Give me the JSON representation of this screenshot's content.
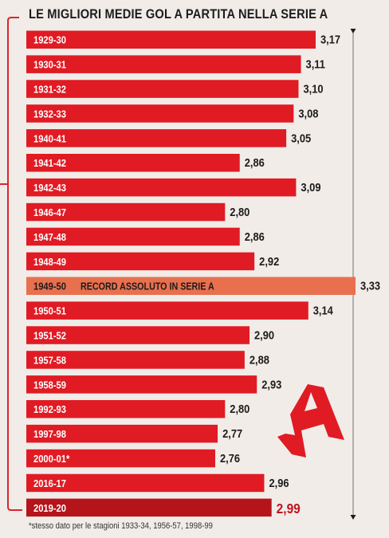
{
  "colors": {
    "bar": "#e01b24",
    "bar_highlight": "#e8704f",
    "bar_last": "#b6141b",
    "bracket": "#d9262b",
    "background": "#f1ece8",
    "label_text": "#ffffff",
    "value_text": "#1c1c1c",
    "value_last": "#c0151c"
  },
  "title": "LE MIGLIORI MEDIE GOL A PARTITA NELLA SERIE A",
  "footnote": "*stesso dato per le stagioni 1933-34, 1956-57, 1998-99",
  "logo": "gazzetta-a-logo",
  "chart_data": {
    "type": "bar",
    "orientation": "horizontal",
    "title": "LE MIGLIORI MEDIE GOL A PARTITA NELLA SERIE A",
    "categories": [
      "1929-30",
      "1930-31",
      "1931-32",
      "1932-33",
      "1940-41",
      "1941-42",
      "1942-43",
      "1946-47",
      "1947-48",
      "1948-49",
      "1949-50",
      "1950-51",
      "1951-52",
      "1957-58",
      "1958-59",
      "1992-93",
      "1997-98",
      "2000-01*",
      "2016-17",
      "2019-20"
    ],
    "values": [
      3.17,
      3.11,
      3.1,
      3.08,
      3.05,
      2.86,
      3.09,
      2.8,
      2.86,
      2.92,
      3.33,
      3.14,
      2.9,
      2.88,
      2.93,
      2.8,
      2.77,
      2.76,
      2.96,
      2.99
    ],
    "value_labels": [
      "3,17",
      "3,11",
      "3,10",
      "3,08",
      "3,05",
      "2,86",
      "3,09",
      "2,80",
      "2,86",
      "2,92",
      "3,33",
      "3,14",
      "2,90",
      "2,88",
      "2,93",
      "2,80",
      "2,77",
      "2,76",
      "2,96",
      "2,99"
    ],
    "highlight": {
      "category": "1949-50",
      "annotation": "RECORD ASSOLUTO IN SERIE A"
    },
    "emphasized": "2019-20",
    "xlabel": "",
    "ylabel": "",
    "grid": false
  }
}
